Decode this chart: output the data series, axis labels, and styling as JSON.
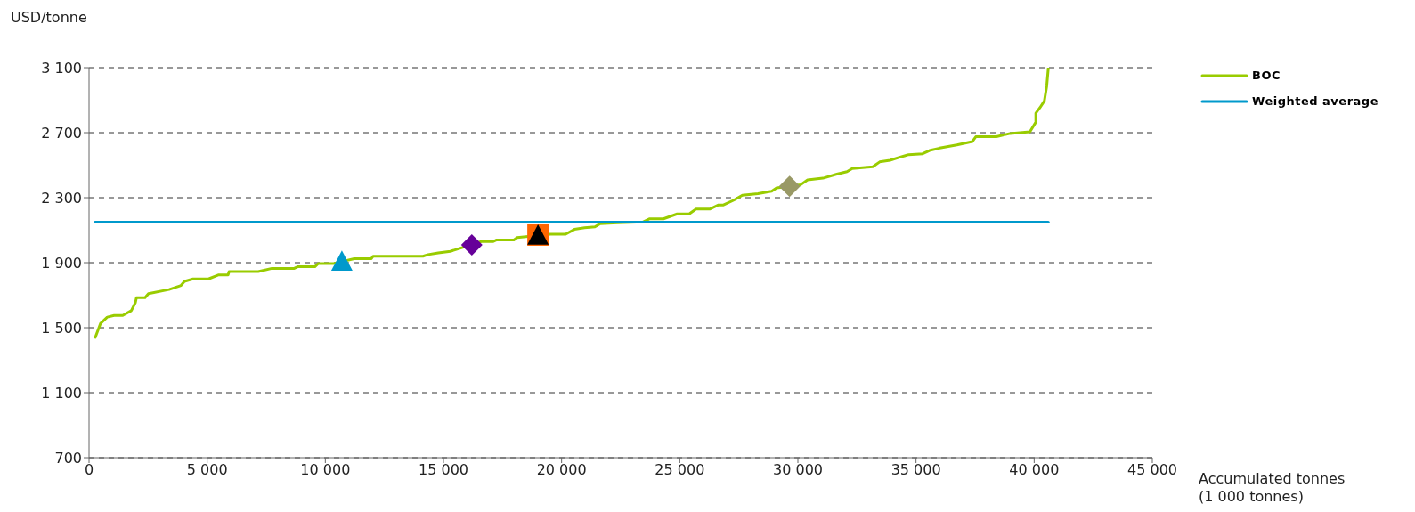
{
  "chart_data": {
    "type": "line",
    "xlabel": "Accumulated tonnes\n(1 000 tonnes)",
    "ylabel": "USD/tonne",
    "xlim": [
      0,
      45000
    ],
    "ylim": [
      700,
      3100
    ],
    "xticks": [
      0,
      {
        "value": 5000,
        "label": "5 000"
      },
      {
        "value": 10000,
        "label": "10 000"
      },
      {
        "value": 15000,
        "label": "15 000"
      },
      {
        "value": 20000,
        "label": "20 000"
      },
      {
        "value": 25000,
        "label": "25 000"
      },
      {
        "value": 30000,
        "label": "30 000"
      },
      {
        "value": 35000,
        "label": "35 000"
      },
      {
        "value": 40000,
        "label": "40 000"
      },
      {
        "value": 45000,
        "label": "45 000"
      }
    ],
    "yticks": [
      700,
      {
        "value": 1100,
        "label": "1 100"
      },
      {
        "value": 1500,
        "label": "1 500"
      },
      {
        "value": 1900,
        "label": "1 900"
      },
      {
        "value": 2300,
        "label": "2 300"
      },
      {
        "value": 2700,
        "label": "2 700"
      },
      {
        "value": 3100,
        "label": "3 100"
      }
    ],
    "grid": "y",
    "legend": "top right",
    "marker": "none",
    "series": [
      {
        "name": "BOC",
        "color": "#99cc00",
        "x": [
          263,
          481,
          772,
          1062,
          1425,
          1788,
          1962,
          2006,
          2370,
          2514,
          3385,
          3893,
          4039,
          4400,
          5055,
          5490,
          5883,
          5926,
          7160,
          7741,
          8685,
          8830,
          9556,
          9701,
          10355,
          11226,
          11950,
          12025,
          14130,
          14350,
          14780,
          15290,
          16600,
          17110,
          17250,
          17980,
          18120,
          18490,
          19520,
          20170,
          20540,
          20970,
          21410,
          21630,
          22350,
          23440,
          23730,
          24310,
          24890,
          25400,
          25690,
          26270,
          26640,
          26850,
          27290,
          27650,
          28310,
          28890,
          29100,
          30120,
          30410,
          31060,
          31650,
          32080,
          32300,
          33170,
          33460,
          33900,
          34330,
          34690,
          35280,
          35570,
          36000,
          36730,
          37380,
          37530,
          38400,
          38980,
          39820,
          40070,
          40070,
          40250,
          40430,
          40530,
          40600
        ],
        "values": [
          1440,
          1525,
          1565,
          1575,
          1575,
          1605,
          1655,
          1685,
          1685,
          1710,
          1735,
          1760,
          1785,
          1800,
          1800,
          1825,
          1825,
          1845,
          1845,
          1865,
          1865,
          1875,
          1875,
          1895,
          1895,
          1925,
          1925,
          1940,
          1940,
          1950,
          1960,
          1970,
          2030,
          2030,
          2040,
          2040,
          2055,
          2060,
          2075,
          2075,
          2105,
          2115,
          2120,
          2140,
          2145,
          2150,
          2170,
          2170,
          2200,
          2200,
          2230,
          2230,
          2255,
          2255,
          2285,
          2315,
          2325,
          2340,
          2360,
          2380,
          2410,
          2420,
          2445,
          2460,
          2480,
          2490,
          2520,
          2530,
          2550,
          2565,
          2570,
          2590,
          2605,
          2625,
          2645,
          2675,
          2675,
          2695,
          2705,
          2765,
          2820,
          2855,
          2895,
          2985,
          3100
        ]
      },
      {
        "name": "Weighted average",
        "color": "#0099cc",
        "x": [
          250,
          40600
        ],
        "values": [
          2150,
          2150
        ]
      },
      {
        "type": "scatter",
        "marker": "triangle",
        "color": "#0099cc",
        "x": [
          10700
        ],
        "values": [
          1910
        ]
      },
      {
        "type": "scatter",
        "marker": "square",
        "color": "#ff6600",
        "x": [
          19000
        ],
        "values": [
          2070
        ]
      },
      {
        "type": "scatter",
        "marker": "triangle",
        "color": "#000000",
        "x": [
          19000
        ],
        "values": [
          2070
        ]
      },
      {
        "type": "scatter",
        "marker": "diamond",
        "color": "#999966",
        "x": [
          29650
        ],
        "values": [
          2370
        ]
      },
      {
        "type": "scatter",
        "marker": "diamond",
        "color": "#660099",
        "x": [
          16200
        ],
        "values": [
          2010
        ]
      }
    ]
  }
}
